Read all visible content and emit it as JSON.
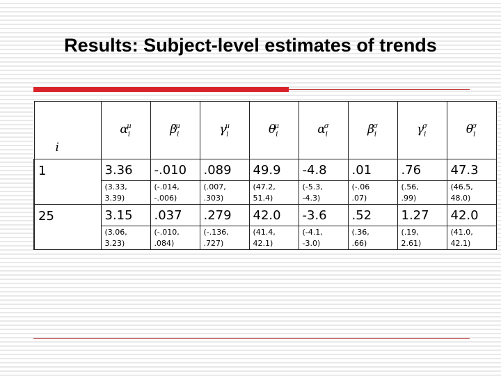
{
  "title": "Results: Subject-level estimates of trends",
  "table": {
    "corner": "i",
    "columns": [
      {
        "symbol": "α",
        "sup": "μ",
        "sub": "i"
      },
      {
        "symbol": "β",
        "sup": "μ",
        "sub": "i"
      },
      {
        "symbol": "γ",
        "sup": "μ",
        "sub": "i"
      },
      {
        "symbol": "θ",
        "sup": "μ",
        "sub": "i"
      },
      {
        "symbol": "α",
        "sup": "σ",
        "sub": "i"
      },
      {
        "symbol": "β",
        "sup": "σ",
        "sub": "i"
      },
      {
        "symbol": "γ",
        "sup": "σ",
        "sub": "i"
      },
      {
        "symbol": "θ",
        "sup": "σ",
        "sub": "i"
      }
    ],
    "rows": [
      {
        "label": "1",
        "estimates": [
          "3.36",
          "-.010",
          ".089",
          "49.9",
          "-4.8",
          ".01",
          ".76",
          "47.3"
        ],
        "intervals": [
          "(3.33, 3.39)",
          "(-.014, -.006)",
          "(.007, .303)",
          "(47.2, 51.4)",
          "(-5.3, -4.3)",
          "(-.06 .07)",
          "(.56, .99)",
          "(46.5, 48.0)"
        ]
      },
      {
        "label": "25",
        "estimates": [
          "3.15",
          ".037",
          ".279",
          "42.0",
          "-3.6",
          ".52",
          "1.27",
          "42.0"
        ],
        "intervals": [
          "(3.06, 3.23)",
          "(-.010, .084)",
          "(-.136, .727)",
          "(41.4, 42.1)",
          "(-4.1, -3.0)",
          "(.36, .66)",
          "(.19, 2.61)",
          "(41.0, 42.1)"
        ]
      }
    ]
  }
}
